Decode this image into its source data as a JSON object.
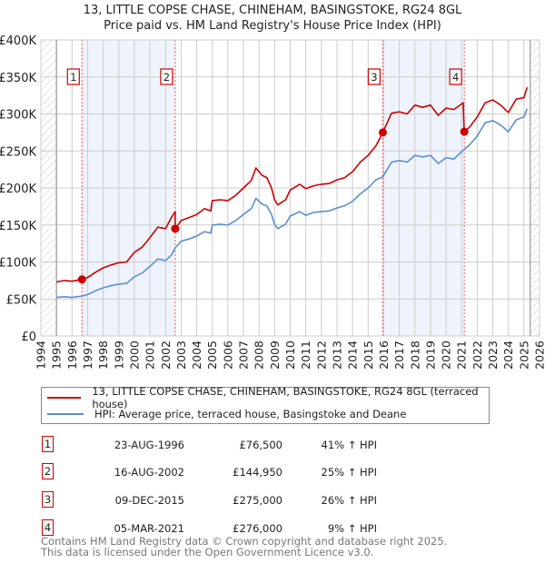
{
  "title": "13, LITTLE COPSE CHASE, CHINEHAM, BASINGSTOKE, RG24 8GL",
  "subtitle": "Price paid vs. HM Land Registry's House Price Index (HPI)",
  "colors": {
    "property": "#cc0000",
    "hpi": "#5b8fd0",
    "shade": "#eef3fc",
    "marker_border": "#cc0000"
  },
  "chart_data": {
    "type": "line",
    "xlim": [
      1994,
      2026
    ],
    "ylim": [
      0,
      400000
    ],
    "x_ticks": [
      "1994",
      "1995",
      "1996",
      "1997",
      "1998",
      "1999",
      "2000",
      "2001",
      "2002",
      "2003",
      "2004",
      "2005",
      "2006",
      "2007",
      "2008",
      "2009",
      "2010",
      "2011",
      "2012",
      "2013",
      "2014",
      "2015",
      "2016",
      "2017",
      "2018",
      "2019",
      "2020",
      "2021",
      "2022",
      "2023",
      "2024",
      "2025",
      "2026"
    ],
    "y_ticks": [
      {
        "value": 0,
        "label": "£0"
      },
      {
        "value": 50000,
        "label": "£50K"
      },
      {
        "value": 100000,
        "label": "£100K"
      },
      {
        "value": 150000,
        "label": "£150K"
      },
      {
        "value": 200000,
        "label": "£200K"
      },
      {
        "value": 250000,
        "label": "£250K"
      },
      {
        "value": 300000,
        "label": "£300K"
      },
      {
        "value": 350000,
        "label": "£350K"
      },
      {
        "value": 400000,
        "label": "£400K"
      }
    ],
    "grid": true,
    "hatched_before": 1995,
    "hatched_after": 2025.4,
    "series": [
      {
        "name": "13, LITTLE COPSE CHASE, CHINEHAM, BASINGSTOKE, RG24 8GL (terraced house)",
        "color": "#cc0000",
        "x": [
          1995,
          1995.5,
          1996,
          1996.64,
          1997,
          1997.5,
          1998,
          1998.5,
          1999,
          1999.5,
          2000,
          2000.5,
          2001,
          2001.5,
          2002,
          2002.4,
          2002.62,
          2002.62,
          2003,
          2003.5,
          2004,
          2004.5,
          2004.9,
          2005,
          2005.5,
          2006,
          2006.5,
          2007,
          2007.5,
          2007.8,
          2008.2,
          2008.5,
          2008.8,
          2009,
          2009.2,
          2009.7,
          2010,
          2010.6,
          2011,
          2011.5,
          2012,
          2012.5,
          2013,
          2013.5,
          2014,
          2014.5,
          2015,
          2015.5,
          2015.94,
          2016.5,
          2017,
          2017.5,
          2018,
          2018.5,
          2019,
          2019.5,
          2020,
          2020.5,
          2021.1,
          2021.17,
          2021.5,
          2022,
          2022.5,
          2023,
          2023.5,
          2024,
          2024.5,
          2025,
          2025.2
        ],
        "y": [
          73000,
          75000,
          74000,
          76500,
          79000,
          86000,
          92000,
          96000,
          99000,
          100000,
          113000,
          120000,
          133000,
          147000,
          145000,
          161000,
          168000,
          144950,
          156000,
          160000,
          164000,
          172000,
          169000,
          183000,
          184000,
          183000,
          190000,
          200000,
          210000,
          227000,
          217000,
          214000,
          200000,
          184000,
          177000,
          184000,
          197000,
          205000,
          199000,
          203000,
          205000,
          206000,
          211000,
          214000,
          222000,
          235000,
          244000,
          257000,
          275000,
          301000,
          303000,
          300000,
          312000,
          309000,
          312000,
          298000,
          308000,
          306000,
          315000,
          276000,
          282000,
          296000,
          315000,
          319000,
          312000,
          302000,
          320000,
          322000,
          336000
        ]
      },
      {
        "name": "HPI: Average price, terraced house, Basingstoke and Deane",
        "color": "#5b8fd0",
        "x": [
          1995,
          1995.5,
          1996,
          1996.64,
          1997,
          1997.5,
          1998,
          1998.5,
          1999,
          1999.5,
          2000,
          2000.5,
          2001,
          2001.5,
          2002,
          2002.4,
          2002.62,
          2003,
          2003.5,
          2004,
          2004.5,
          2004.9,
          2005,
          2005.5,
          2006,
          2006.5,
          2007,
          2007.5,
          2007.8,
          2008.2,
          2008.5,
          2008.8,
          2009,
          2009.2,
          2009.7,
          2010,
          2010.6,
          2011,
          2011.5,
          2012,
          2012.5,
          2013,
          2013.5,
          2014,
          2014.5,
          2015,
          2015.5,
          2015.94,
          2016.5,
          2017,
          2017.5,
          2018,
          2018.5,
          2019,
          2019.5,
          2020,
          2020.5,
          2021.1,
          2021.5,
          2022,
          2022.5,
          2023,
          2023.5,
          2024,
          2024.5,
          2025,
          2025.2
        ],
        "y": [
          52000,
          53000,
          52000,
          54000,
          56000,
          61000,
          65000,
          68000,
          70000,
          71000,
          80000,
          85000,
          94000,
          104000,
          102000,
          110000,
          119000,
          128000,
          131000,
          135000,
          141000,
          139000,
          150000,
          151000,
          150000,
          156000,
          164000,
          172000,
          186000,
          178000,
          176000,
          164000,
          151000,
          145000,
          151000,
          162000,
          168000,
          163000,
          167000,
          168000,
          169000,
          173000,
          176000,
          182000,
          192000,
          200000,
          211000,
          215000,
          235000,
          237000,
          235000,
          244000,
          242000,
          244000,
          233000,
          241000,
          239000,
          251000,
          258000,
          270000,
          288000,
          291000,
          285000,
          276000,
          292000,
          296000,
          307000
        ]
      }
    ],
    "sales": [
      {
        "num": "1",
        "x": 1996.64,
        "date": "23-AUG-1996",
        "price": 76500,
        "price_label": "£76,500",
        "hpi_label": "41% ↑ HPI"
      },
      {
        "num": "2",
        "x": 2002.62,
        "date": "16-AUG-2002",
        "price": 144950,
        "price_label": "£144,950",
        "hpi_label": "25% ↑ HPI"
      },
      {
        "num": "3",
        "x": 2015.94,
        "date": "09-DEC-2015",
        "price": 275000,
        "price_label": "£275,000",
        "hpi_label": "26% ↑ HPI"
      },
      {
        "num": "4",
        "x": 2021.17,
        "date": "05-MAR-2021",
        "price": 276000,
        "price_label": "£276,000",
        "hpi_label": "9% ↑ HPI"
      }
    ],
    "shaded_ranges": [
      [
        1996.64,
        2002.62
      ],
      [
        2015.94,
        2021.17
      ]
    ]
  },
  "legend": {
    "property": "13, LITTLE COPSE CHASE, CHINEHAM, BASINGSTOKE, RG24 8GL (terraced house)",
    "hpi": "HPI: Average price, terraced house, Basingstoke and Deane"
  },
  "footer": {
    "line1": "Contains HM Land Registry data © Crown copyright and database right 2025.",
    "line2": "This data is licensed under the Open Government Licence v3.0."
  }
}
